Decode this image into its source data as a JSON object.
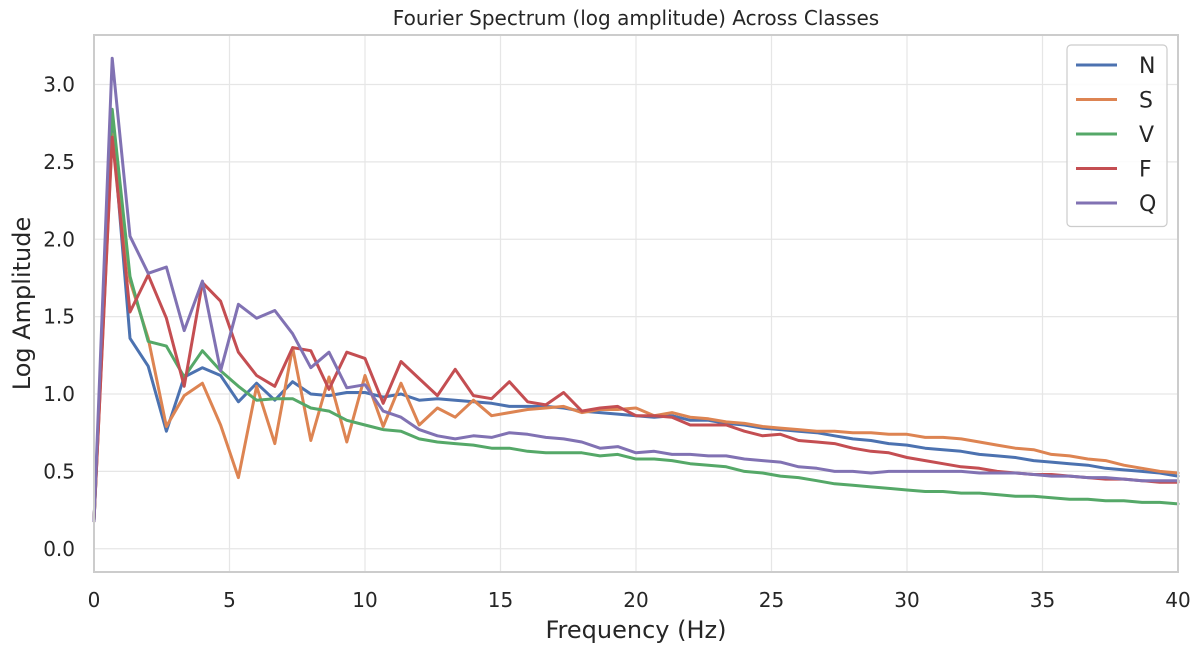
{
  "chart_data": {
    "type": "line",
    "title": "Fourier Spectrum (log amplitude) Across Classes",
    "xlabel": "Frequency (Hz)",
    "ylabel": "Log Amplitude",
    "xlim": [
      0,
      40
    ],
    "ylim": [
      -0.15,
      3.32
    ],
    "xticks": [
      0,
      5,
      10,
      15,
      20,
      25,
      30,
      35,
      40
    ],
    "xtick_labels": [
      "0",
      "5",
      "10",
      "15",
      "20",
      "25",
      "30",
      "35",
      "40"
    ],
    "yticks": [
      0.0,
      0.5,
      1.0,
      1.5,
      2.0,
      2.5,
      3.0
    ],
    "ytick_labels": [
      "0.0",
      "0.5",
      "1.0",
      "1.5",
      "2.0",
      "2.5",
      "3.0"
    ],
    "grid": true,
    "legend_position": "top-right",
    "series": [
      {
        "name": "N",
        "color": "#4c72b0",
        "x": [
          0,
          0.67,
          1.33,
          2.0,
          2.67,
          3.33,
          4.0,
          4.67,
          5.33,
          6.0,
          6.67,
          7.33,
          8.0,
          8.67,
          9.33,
          10.0,
          10.67,
          11.33,
          12.0,
          12.67,
          13.33,
          14.0,
          14.67,
          15.33,
          16.0,
          16.67,
          17.33,
          18.0,
          18.67,
          19.33,
          20.0,
          20.67,
          21.33,
          22.0,
          22.67,
          23.33,
          24.0,
          24.67,
          25.33,
          26.0,
          26.67,
          27.33,
          28.0,
          28.67,
          29.33,
          30.0,
          30.67,
          31.33,
          32.0,
          32.67,
          33.33,
          34.0,
          34.67,
          35.33,
          36.0,
          36.67,
          37.33,
          38.0,
          38.67,
          39.33,
          40.0
        ],
        "y": [
          0.18,
          2.75,
          1.36,
          1.18,
          0.76,
          1.11,
          1.17,
          1.12,
          0.95,
          1.07,
          0.96,
          1.08,
          1.0,
          0.99,
          1.01,
          1.01,
          0.98,
          1.0,
          0.96,
          0.97,
          0.96,
          0.95,
          0.94,
          0.92,
          0.92,
          0.92,
          0.91,
          0.89,
          0.88,
          0.87,
          0.86,
          0.85,
          0.86,
          0.83,
          0.83,
          0.81,
          0.8,
          0.78,
          0.77,
          0.76,
          0.75,
          0.73,
          0.71,
          0.7,
          0.68,
          0.67,
          0.65,
          0.64,
          0.63,
          0.61,
          0.6,
          0.59,
          0.57,
          0.56,
          0.55,
          0.54,
          0.52,
          0.51,
          0.5,
          0.49,
          0.47
        ]
      },
      {
        "name": "S",
        "color": "#dd8452",
        "x": [
          0,
          0.67,
          1.33,
          2.0,
          2.67,
          3.33,
          4.0,
          4.67,
          5.33,
          6.0,
          6.67,
          7.33,
          8.0,
          8.67,
          9.33,
          10.0,
          10.67,
          11.33,
          12.0,
          12.67,
          13.33,
          14.0,
          14.67,
          15.33,
          16.0,
          16.67,
          17.33,
          18.0,
          18.67,
          19.33,
          20.0,
          20.67,
          21.33,
          22.0,
          22.67,
          23.33,
          24.0,
          24.67,
          25.33,
          26.0,
          26.67,
          27.33,
          28.0,
          28.67,
          29.33,
          30.0,
          30.67,
          31.33,
          32.0,
          32.67,
          33.33,
          34.0,
          34.67,
          35.33,
          36.0,
          36.67,
          37.33,
          38.0,
          38.67,
          39.33,
          40.0
        ],
        "y": [
          0.18,
          2.68,
          1.73,
          1.36,
          0.79,
          0.99,
          1.07,
          0.8,
          0.46,
          1.05,
          0.68,
          1.3,
          0.7,
          1.11,
          0.69,
          1.12,
          0.79,
          1.07,
          0.8,
          0.91,
          0.85,
          0.96,
          0.86,
          0.88,
          0.9,
          0.91,
          0.92,
          0.88,
          0.9,
          0.9,
          0.91,
          0.86,
          0.88,
          0.85,
          0.84,
          0.82,
          0.81,
          0.79,
          0.78,
          0.77,
          0.76,
          0.76,
          0.75,
          0.75,
          0.74,
          0.74,
          0.72,
          0.72,
          0.71,
          0.69,
          0.67,
          0.65,
          0.64,
          0.61,
          0.6,
          0.58,
          0.57,
          0.54,
          0.52,
          0.5,
          0.49
        ]
      },
      {
        "name": "V",
        "color": "#55a868",
        "x": [
          0,
          0.67,
          1.33,
          2.0,
          2.67,
          3.33,
          4.0,
          4.67,
          5.33,
          6.0,
          6.67,
          7.33,
          8.0,
          8.67,
          9.33,
          10.0,
          10.67,
          11.33,
          12.0,
          12.67,
          13.33,
          14.0,
          14.67,
          15.33,
          16.0,
          16.67,
          17.33,
          18.0,
          18.67,
          19.33,
          20.0,
          20.67,
          21.33,
          22.0,
          22.67,
          23.33,
          24.0,
          24.67,
          25.33,
          26.0,
          26.67,
          27.33,
          28.0,
          28.67,
          29.33,
          30.0,
          30.67,
          31.33,
          32.0,
          32.67,
          33.33,
          34.0,
          34.67,
          35.33,
          36.0,
          36.67,
          37.33,
          38.0,
          38.67,
          39.33,
          40.0
        ],
        "y": [
          0.18,
          2.84,
          1.76,
          1.34,
          1.31,
          1.11,
          1.28,
          1.15,
          1.05,
          0.96,
          0.97,
          0.97,
          0.91,
          0.89,
          0.83,
          0.8,
          0.77,
          0.76,
          0.71,
          0.69,
          0.68,
          0.67,
          0.65,
          0.65,
          0.63,
          0.62,
          0.62,
          0.62,
          0.6,
          0.61,
          0.58,
          0.58,
          0.57,
          0.55,
          0.54,
          0.53,
          0.5,
          0.49,
          0.47,
          0.46,
          0.44,
          0.42,
          0.41,
          0.4,
          0.39,
          0.38,
          0.37,
          0.37,
          0.36,
          0.36,
          0.35,
          0.34,
          0.34,
          0.33,
          0.32,
          0.32,
          0.31,
          0.31,
          0.3,
          0.3,
          0.29
        ]
      },
      {
        "name": "F",
        "color": "#c44e52",
        "x": [
          0,
          0.67,
          1.33,
          2.0,
          2.67,
          3.33,
          4.0,
          4.67,
          5.33,
          6.0,
          6.67,
          7.33,
          8.0,
          8.67,
          9.33,
          10.0,
          10.67,
          11.33,
          12.0,
          12.67,
          13.33,
          14.0,
          14.67,
          15.33,
          16.0,
          16.67,
          17.33,
          18.0,
          18.67,
          19.33,
          20.0,
          20.67,
          21.33,
          22.0,
          22.67,
          23.33,
          24.0,
          24.67,
          25.33,
          26.0,
          26.67,
          27.33,
          28.0,
          28.67,
          29.33,
          30.0,
          30.67,
          31.33,
          32.0,
          32.67,
          33.33,
          34.0,
          34.67,
          35.33,
          36.0,
          36.67,
          37.33,
          38.0,
          38.67,
          39.33,
          40.0
        ],
        "y": [
          0.18,
          2.66,
          1.53,
          1.77,
          1.49,
          1.05,
          1.72,
          1.6,
          1.27,
          1.12,
          1.05,
          1.3,
          1.28,
          1.03,
          1.27,
          1.23,
          0.94,
          1.21,
          1.1,
          0.99,
          1.16,
          0.99,
          0.97,
          1.08,
          0.95,
          0.93,
          1.01,
          0.89,
          0.91,
          0.92,
          0.86,
          0.86,
          0.85,
          0.8,
          0.8,
          0.8,
          0.76,
          0.73,
          0.74,
          0.7,
          0.69,
          0.68,
          0.65,
          0.63,
          0.62,
          0.59,
          0.57,
          0.55,
          0.53,
          0.52,
          0.5,
          0.49,
          0.48,
          0.48,
          0.47,
          0.46,
          0.45,
          0.45,
          0.44,
          0.43,
          0.43
        ]
      },
      {
        "name": "Q",
        "color": "#8172b3",
        "x": [
          0,
          0.67,
          1.33,
          2.0,
          2.67,
          3.33,
          4.0,
          4.67,
          5.33,
          6.0,
          6.67,
          7.33,
          8.0,
          8.67,
          9.33,
          10.0,
          10.67,
          11.33,
          12.0,
          12.67,
          13.33,
          14.0,
          14.67,
          15.33,
          16.0,
          16.67,
          17.33,
          18.0,
          18.67,
          19.33,
          20.0,
          20.67,
          21.33,
          22.0,
          22.67,
          23.33,
          24.0,
          24.67,
          25.33,
          26.0,
          26.67,
          27.33,
          28.0,
          28.67,
          29.33,
          30.0,
          30.67,
          31.33,
          32.0,
          32.67,
          33.33,
          34.0,
          34.67,
          35.33,
          36.0,
          36.67,
          37.33,
          38.0,
          38.67,
          39.33,
          40.0
        ],
        "y": [
          0.18,
          3.17,
          2.02,
          1.78,
          1.82,
          1.41,
          1.73,
          1.15,
          1.58,
          1.49,
          1.54,
          1.39,
          1.17,
          1.27,
          1.04,
          1.06,
          0.89,
          0.85,
          0.77,
          0.73,
          0.71,
          0.73,
          0.72,
          0.75,
          0.74,
          0.72,
          0.71,
          0.69,
          0.65,
          0.66,
          0.62,
          0.63,
          0.61,
          0.61,
          0.6,
          0.6,
          0.58,
          0.57,
          0.56,
          0.53,
          0.52,
          0.5,
          0.5,
          0.49,
          0.5,
          0.5,
          0.5,
          0.5,
          0.5,
          0.49,
          0.49,
          0.49,
          0.48,
          0.47,
          0.47,
          0.46,
          0.46,
          0.45,
          0.44,
          0.44,
          0.44
        ]
      }
    ]
  }
}
